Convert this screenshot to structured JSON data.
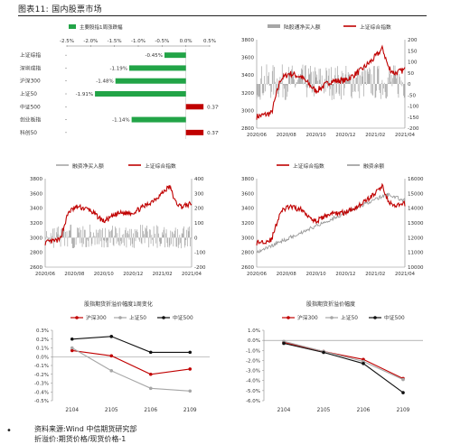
{
  "header": {
    "title": "图表11:   国内股票市场"
  },
  "footer": {
    "source": "资料来源:Wind  中信期货研究部",
    "note": "折溢价:期货价格/现货价格-1"
  },
  "colors": {
    "red": "#c00000",
    "green": "#22a447",
    "gray": "#a6a6a6",
    "black": "#111111"
  },
  "chart_data": [
    {
      "type": "bar",
      "orientation": "horizontal",
      "legend": [
        "主要股指1周涨跌幅"
      ],
      "categories": [
        "上证综指",
        "深圳成指",
        "沪深300",
        "上证50",
        "中证500",
        "创业板指",
        "科创50"
      ],
      "values": [
        -0.45,
        -1.19,
        -1.48,
        -1.91,
        0.37,
        -1.14,
        0.37
      ],
      "value_labels": [
        "-0.45%",
        "-1.19%",
        "-1.48%",
        "-1.91%",
        "0.37%",
        "-1.14%",
        "0.37%"
      ],
      "xlim": [
        -2.5,
        0.5
      ],
      "xticks": [
        "-2.5%",
        "-2.0%",
        "-1.5%",
        "-1.0%",
        "-0.5%",
        "0.0%",
        "0.5%"
      ]
    },
    {
      "type": "line",
      "legend": [
        "陆股通净买入额",
        "上证综合指数"
      ],
      "xticks": [
        "2020/06",
        "2020/08",
        "2020/10",
        "2020/12",
        "2021/02",
        "2021/04"
      ],
      "left_yticks": [
        "2800",
        "3000",
        "3200",
        "3400",
        "3600",
        "3800"
      ],
      "right_yticks": [
        "-200",
        "-150",
        "-100",
        "-50",
        "0",
        "50",
        "100",
        "150",
        "200"
      ],
      "ylim_left": [
        2800,
        3800
      ],
      "ylim_right": [
        -200,
        200
      ]
    },
    {
      "type": "line",
      "legend": [
        "融资净买入额",
        "上证综合指数"
      ],
      "xticks": [
        "2020/06",
        "2020/08",
        "2020/10",
        "2020/12",
        "2021/02",
        "2021/04"
      ],
      "left_yticks": [
        "2600",
        "2800",
        "3000",
        "3200",
        "3400",
        "3600",
        "3800"
      ],
      "right_yticks": [
        "-200",
        "-100",
        "0",
        "100",
        "200",
        "300",
        "400"
      ],
      "ylim_left": [
        2600,
        3800
      ],
      "ylim_right": [
        -200,
        400
      ]
    },
    {
      "type": "line",
      "legend": [
        "上证综合指数",
        "融资余额"
      ],
      "xticks": [
        "2020/06",
        "2020/08",
        "2020/10",
        "2020/12",
        "2021/02",
        "2021/04"
      ],
      "left_yticks": [
        "2600",
        "2800",
        "3000",
        "3200",
        "3400",
        "3600",
        "3800"
      ],
      "right_yticks": [
        "10000",
        "11000",
        "12000",
        "13000",
        "14000",
        "15000",
        "16000"
      ],
      "ylim_left": [
        2600,
        3800
      ],
      "ylim_right": [
        10000,
        16000
      ]
    },
    {
      "type": "line",
      "title": "股指期货折溢价幅度1周变化",
      "categories": [
        "2104",
        "2105",
        "2106",
        "2109"
      ],
      "yticks": [
        "-0.5%",
        "-0.4%",
        "-0.3%",
        "-0.2%",
        "-0.1%",
        "0.0%",
        "0.1%",
        "0.2%",
        "0.3%"
      ],
      "ylim": [
        -0.5,
        0.3
      ],
      "series": [
        {
          "name": "沪深300",
          "values": [
            0.07,
            0.01,
            -0.2,
            -0.14
          ]
        },
        {
          "name": "上证50",
          "values": [
            0.1,
            -0.16,
            -0.36,
            -0.39
          ]
        },
        {
          "name": "中证500",
          "values": [
            0.2,
            0.23,
            0.05,
            0.05
          ]
        }
      ]
    },
    {
      "type": "line",
      "title": "股指期货折溢价幅度",
      "categories": [
        "2104",
        "2105",
        "2106",
        "2109"
      ],
      "yticks": [
        "-6.0%",
        "-5.0%",
        "-4.0%",
        "-3.0%",
        "-2.0%",
        "-1.0%",
        "0.0%",
        "1.0%"
      ],
      "ylim": [
        -6,
        1
      ],
      "series": [
        {
          "name": "沪深300",
          "values": [
            -0.2,
            -1.1,
            -1.9,
            -3.8
          ]
        },
        {
          "name": "上证50",
          "values": [
            -0.1,
            -1.1,
            -2.1,
            -3.9
          ]
        },
        {
          "name": "中证500",
          "values": [
            -0.3,
            -1.2,
            -2.3,
            -5.2
          ]
        }
      ]
    }
  ]
}
